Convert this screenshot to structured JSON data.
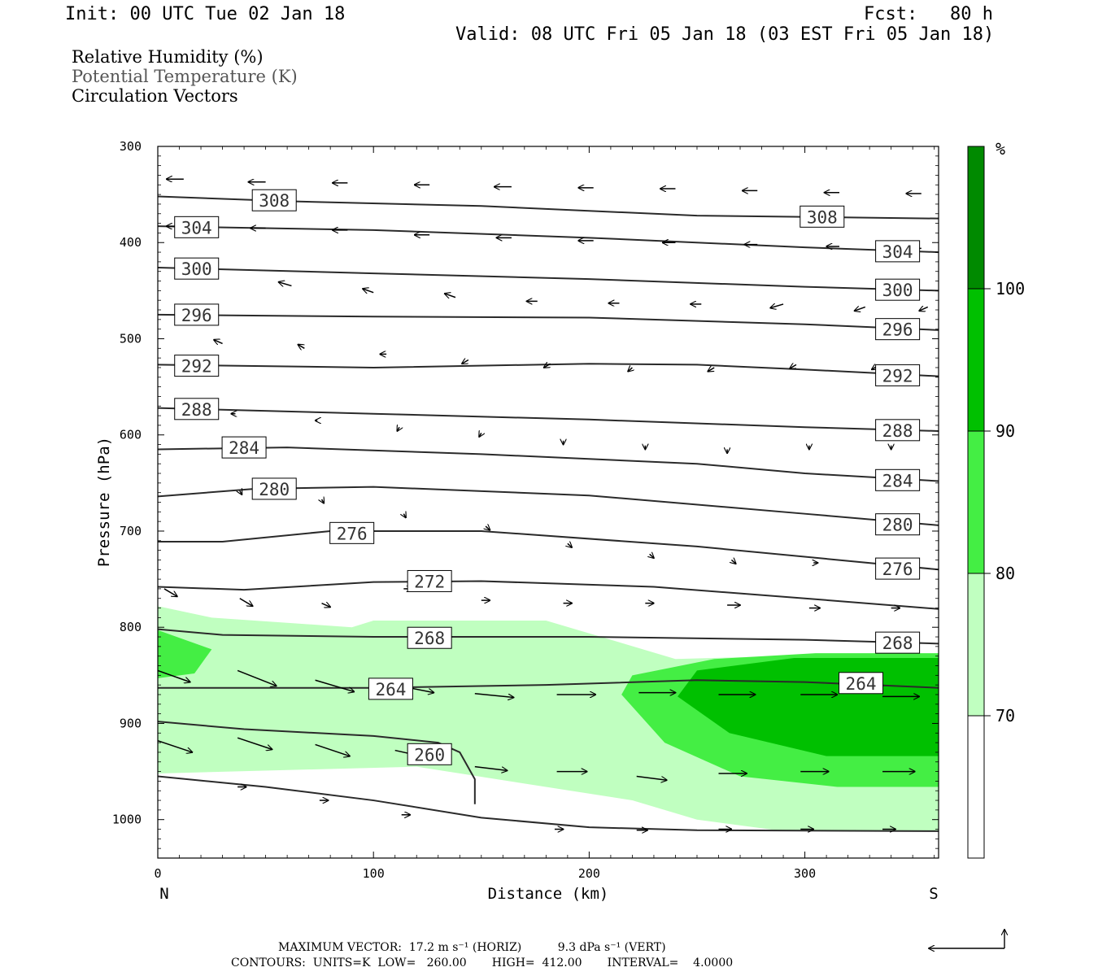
{
  "header": {
    "init": "Init: 00 UTC Tue 02 Jan 18",
    "fcst": "Fcst:   80 h",
    "valid": "Valid: 08 UTC Fri 05 Jan 18 (03 EST Fri 05 Jan 18)",
    "fields": [
      {
        "label": "Relative Humidity (%)",
        "color": "#000000"
      },
      {
        "label": "Potential Temperature (K)",
        "color": "#555555"
      },
      {
        "label": "Circulation Vectors",
        "color": "#000000"
      }
    ]
  },
  "footer": {
    "max_vector": "MAXIMUM VECTOR:  17.2 m s⁻¹ (HORIZ)          9.3 dPa s⁻¹ (VERT)",
    "contours": "CONTOURS:  UNITS=K  LOW=   260.00       HIGH=  412.00       INTERVAL=    4.0000"
  },
  "chart_data": {
    "type": "cross-section",
    "ylabel": "Pressure (hPa)",
    "xlabel": "Distance (km)",
    "x_ticks": [
      0,
      100,
      200,
      300
    ],
    "y_ticks": [
      300,
      400,
      500,
      600,
      700,
      800,
      900,
      1000
    ],
    "xlim": [
      0,
      362
    ],
    "ylim": [
      300,
      1040
    ],
    "y_reversed": true,
    "end_labels": {
      "left": "N",
      "right": "S"
    },
    "colorbar": {
      "unit": "%",
      "levels": [
        70,
        80,
        90,
        100
      ],
      "colors": [
        "#ffffff",
        "#c0ffc0",
        "#44ee44",
        "#00c000",
        "#008a00"
      ]
    },
    "rh_regions": [
      {
        "level": 70,
        "color": "#c0ffc0",
        "pts": [
          [
            0,
            778
          ],
          [
            25,
            790
          ],
          [
            90,
            800
          ],
          [
            100,
            793
          ],
          [
            180,
            793
          ],
          [
            240,
            833
          ],
          [
            290,
            830
          ],
          [
            362,
            830
          ],
          [
            362,
            1012
          ],
          [
            290,
            1012
          ],
          [
            250,
            1000
          ],
          [
            220,
            980
          ],
          [
            120,
            945
          ],
          [
            0,
            952
          ]
        ]
      },
      {
        "level": 80,
        "color": "#44ee44",
        "pts": [
          [
            0,
            803
          ],
          [
            25,
            823
          ],
          [
            17,
            848
          ],
          [
            0,
            853
          ]
        ]
      },
      {
        "level": 80,
        "color": "#44ee44",
        "pts": [
          [
            215,
            870
          ],
          [
            220,
            850
          ],
          [
            258,
            833
          ],
          [
            305,
            827
          ],
          [
            362,
            827
          ],
          [
            362,
            966
          ],
          [
            315,
            966
          ],
          [
            270,
            955
          ],
          [
            235,
            920
          ]
        ]
      },
      {
        "level": 90,
        "color": "#00c000",
        "pts": [
          [
            241,
            872
          ],
          [
            250,
            845
          ],
          [
            295,
            832
          ],
          [
            362,
            832
          ],
          [
            362,
            934
          ],
          [
            310,
            934
          ],
          [
            265,
            910
          ]
        ]
      }
    ],
    "theta_contours": [
      {
        "value": 308,
        "pts": [
          [
            0,
            352
          ],
          [
            60,
            357
          ],
          [
            150,
            362
          ],
          [
            250,
            372
          ],
          [
            362,
            375
          ]
        ],
        "labels": [
          [
            54,
            356
          ],
          [
            308,
            373
          ]
        ]
      },
      {
        "value": 304,
        "pts": [
          [
            0,
            383
          ],
          [
            100,
            387
          ],
          [
            200,
            395
          ],
          [
            300,
            405
          ],
          [
            362,
            410
          ]
        ],
        "labels": [
          [
            18,
            384
          ],
          [
            343,
            409
          ]
        ]
      },
      {
        "value": 300,
        "pts": [
          [
            0,
            426
          ],
          [
            100,
            432
          ],
          [
            200,
            438
          ],
          [
            300,
            446
          ],
          [
            362,
            450
          ]
        ],
        "labels": [
          [
            18,
            427
          ],
          [
            343,
            449
          ]
        ]
      },
      {
        "value": 296,
        "pts": [
          [
            0,
            475
          ],
          [
            100,
            477
          ],
          [
            200,
            478
          ],
          [
            300,
            485
          ],
          [
            362,
            491
          ]
        ],
        "labels": [
          [
            18,
            475
          ],
          [
            343,
            490
          ]
        ]
      },
      {
        "value": 292,
        "pts": [
          [
            0,
            527
          ],
          [
            100,
            530
          ],
          [
            200,
            526
          ],
          [
            250,
            527
          ],
          [
            300,
            532
          ],
          [
            362,
            539
          ]
        ],
        "labels": [
          [
            18,
            528
          ],
          [
            343,
            538
          ]
        ]
      },
      {
        "value": 288,
        "pts": [
          [
            0,
            572
          ],
          [
            100,
            578
          ],
          [
            200,
            584
          ],
          [
            300,
            592
          ],
          [
            362,
            596
          ]
        ],
        "labels": [
          [
            18,
            573
          ],
          [
            343,
            595
          ]
        ]
      },
      {
        "value": 284,
        "pts": [
          [
            0,
            615
          ],
          [
            60,
            613
          ],
          [
            150,
            620
          ],
          [
            250,
            630
          ],
          [
            300,
            640
          ],
          [
            362,
            648
          ]
        ],
        "labels": [
          [
            40,
            613
          ],
          [
            343,
            647
          ]
        ]
      },
      {
        "value": 280,
        "pts": [
          [
            0,
            664
          ],
          [
            45,
            656
          ],
          [
            100,
            654
          ],
          [
            200,
            663
          ],
          [
            300,
            682
          ],
          [
            362,
            694
          ]
        ],
        "labels": [
          [
            54,
            656
          ],
          [
            343,
            693
          ]
        ]
      },
      {
        "value": 276,
        "pts": [
          [
            0,
            711
          ],
          [
            30,
            711
          ],
          [
            80,
            700
          ],
          [
            150,
            700
          ],
          [
            250,
            716
          ],
          [
            362,
            740
          ]
        ],
        "labels": [
          [
            90,
            702
          ],
          [
            343,
            739
          ]
        ]
      },
      {
        "value": 272,
        "pts": [
          [
            0,
            758
          ],
          [
            40,
            761
          ],
          [
            100,
            753
          ],
          [
            150,
            752
          ],
          [
            230,
            758
          ],
          [
            300,
            770
          ],
          [
            362,
            781
          ]
        ],
        "labels": [
          [
            126,
            752
          ]
        ]
      },
      {
        "value": 268,
        "pts": [
          [
            0,
            802
          ],
          [
            30,
            808
          ],
          [
            100,
            810
          ],
          [
            200,
            810
          ],
          [
            300,
            813
          ],
          [
            362,
            817
          ]
        ],
        "labels": [
          [
            126,
            811
          ],
          [
            343,
            816
          ]
        ]
      },
      {
        "value": 264,
        "pts": [
          [
            0,
            863
          ],
          [
            100,
            863
          ],
          [
            180,
            860
          ],
          [
            250,
            855
          ],
          [
            300,
            857
          ],
          [
            362,
            863
          ]
        ],
        "labels": [
          [
            108,
            864
          ],
          [
            326,
            858
          ]
        ]
      },
      {
        "value": 260,
        "pts": [
          [
            0,
            898
          ],
          [
            40,
            906
          ],
          [
            100,
            913
          ],
          [
            130,
            920
          ],
          [
            140,
            930
          ],
          [
            147,
            958
          ],
          [
            147,
            984
          ]
        ],
        "labels": [
          [
            126,
            932
          ]
        ]
      },
      {
        "value": null,
        "pts": [
          [
            0,
            955
          ],
          [
            50,
            966
          ],
          [
            100,
            980
          ],
          [
            150,
            998
          ],
          [
            200,
            1008
          ],
          [
            250,
            1011
          ],
          [
            362,
            1012
          ]
        ],
        "labels": []
      }
    ],
    "vectors": [
      [
        12,
        334,
        -8,
        0
      ],
      [
        50,
        337,
        -8,
        0
      ],
      [
        88,
        338,
        -7,
        0
      ],
      [
        126,
        340,
        -7,
        0
      ],
      [
        164,
        342,
        -8,
        0
      ],
      [
        202,
        343,
        -7,
        0
      ],
      [
        240,
        344,
        -7,
        0
      ],
      [
        278,
        346,
        -7,
        0
      ],
      [
        316,
        348,
        -7,
        0
      ],
      [
        354,
        349,
        -7,
        0
      ],
      [
        12,
        383,
        -8,
        0
      ],
      [
        50,
        385,
        -7,
        0
      ],
      [
        88,
        387,
        -7,
        0
      ],
      [
        126,
        392,
        -7,
        0
      ],
      [
        164,
        395,
        -7,
        0
      ],
      [
        202,
        398,
        -7,
        0
      ],
      [
        240,
        400,
        -6,
        0
      ],
      [
        278,
        402,
        -6,
        0
      ],
      [
        316,
        404,
        -6,
        0
      ],
      [
        354,
        406,
        -6,
        0
      ],
      [
        25,
        435,
        -6,
        -1
      ],
      [
        62,
        445,
        -6,
        -1
      ],
      [
        100,
        452,
        -5,
        -1
      ],
      [
        138,
        457,
        -5,
        -1
      ],
      [
        176,
        461,
        -5,
        0
      ],
      [
        214,
        463,
        -5,
        0
      ],
      [
        252,
        464,
        -5,
        0
      ],
      [
        290,
        464,
        -6,
        1
      ],
      [
        328,
        467,
        -5,
        1
      ],
      [
        357,
        467,
        -4,
        1
      ],
      [
        30,
        505,
        -4,
        -1
      ],
      [
        68,
        510,
        -3,
        -1
      ],
      [
        106,
        516,
        -3,
        0
      ],
      [
        144,
        522,
        -3,
        1
      ],
      [
        182,
        526,
        -3,
        1
      ],
      [
        220,
        530,
        -2,
        1
      ],
      [
        258,
        530,
        -3,
        1
      ],
      [
        296,
        527,
        -3,
        1
      ],
      [
        334,
        528,
        -3,
        1
      ],
      [
        36,
        578,
        -2,
        0
      ],
      [
        74,
        585,
        -1,
        0
      ],
      [
        112,
        592,
        -1,
        1
      ],
      [
        150,
        598,
        -1,
        1
      ],
      [
        188,
        606,
        0,
        1
      ],
      [
        226,
        611,
        0,
        1
      ],
      [
        264,
        615,
        0,
        1
      ],
      [
        302,
        611,
        0,
        1
      ],
      [
        340,
        611,
        0,
        1
      ],
      [
        38,
        658,
        1,
        1
      ],
      [
        76,
        667,
        1,
        1
      ],
      [
        114,
        682,
        1,
        1
      ],
      [
        152,
        695,
        2,
        1
      ],
      [
        190,
        713,
        2,
        1
      ],
      [
        228,
        724,
        2,
        1
      ],
      [
        266,
        730,
        2,
        1
      ],
      [
        304,
        733,
        2,
        0
      ],
      [
        342,
        738,
        2,
        0
      ],
      [
        3,
        760,
        6,
        2
      ],
      [
        38,
        770,
        6,
        2
      ],
      [
        76,
        775,
        4,
        1
      ],
      [
        114,
        760,
        4,
        0
      ],
      [
        150,
        772,
        4,
        0
      ],
      [
        188,
        775,
        4,
        0
      ],
      [
        226,
        775,
        4,
        0
      ],
      [
        264,
        777,
        6,
        0
      ],
      [
        302,
        780,
        5,
        0
      ],
      [
        340,
        780,
        4,
        0
      ],
      [
        0,
        845,
        15,
        3
      ],
      [
        37,
        845,
        18,
        4
      ],
      [
        73,
        855,
        18,
        3
      ],
      [
        110,
        860,
        18,
        2
      ],
      [
        147,
        869,
        18,
        1
      ],
      [
        185,
        870,
        18,
        0
      ],
      [
        223,
        868,
        17,
        0
      ],
      [
        260,
        870,
        17,
        0
      ],
      [
        298,
        870,
        17,
        0
      ],
      [
        336,
        872,
        17,
        0
      ],
      [
        0,
        918,
        16,
        3
      ],
      [
        37,
        915,
        16,
        3
      ],
      [
        73,
        922,
        16,
        3
      ],
      [
        110,
        928,
        16,
        2
      ],
      [
        147,
        945,
        15,
        1
      ],
      [
        185,
        950,
        14,
        0
      ],
      [
        222,
        955,
        14,
        1
      ],
      [
        260,
        952,
        13,
        0
      ],
      [
        298,
        950,
        13,
        0
      ],
      [
        336,
        950,
        15,
        0
      ],
      [
        37,
        966,
        4,
        0
      ],
      [
        75,
        980,
        4,
        0
      ],
      [
        113,
        995,
        4,
        0
      ],
      [
        184,
        1010,
        4,
        0
      ],
      [
        222,
        1011,
        5,
        0
      ],
      [
        260,
        1010,
        6,
        0
      ],
      [
        298,
        1010,
        6,
        0
      ],
      [
        336,
        1010,
        6,
        0
      ]
    ]
  }
}
